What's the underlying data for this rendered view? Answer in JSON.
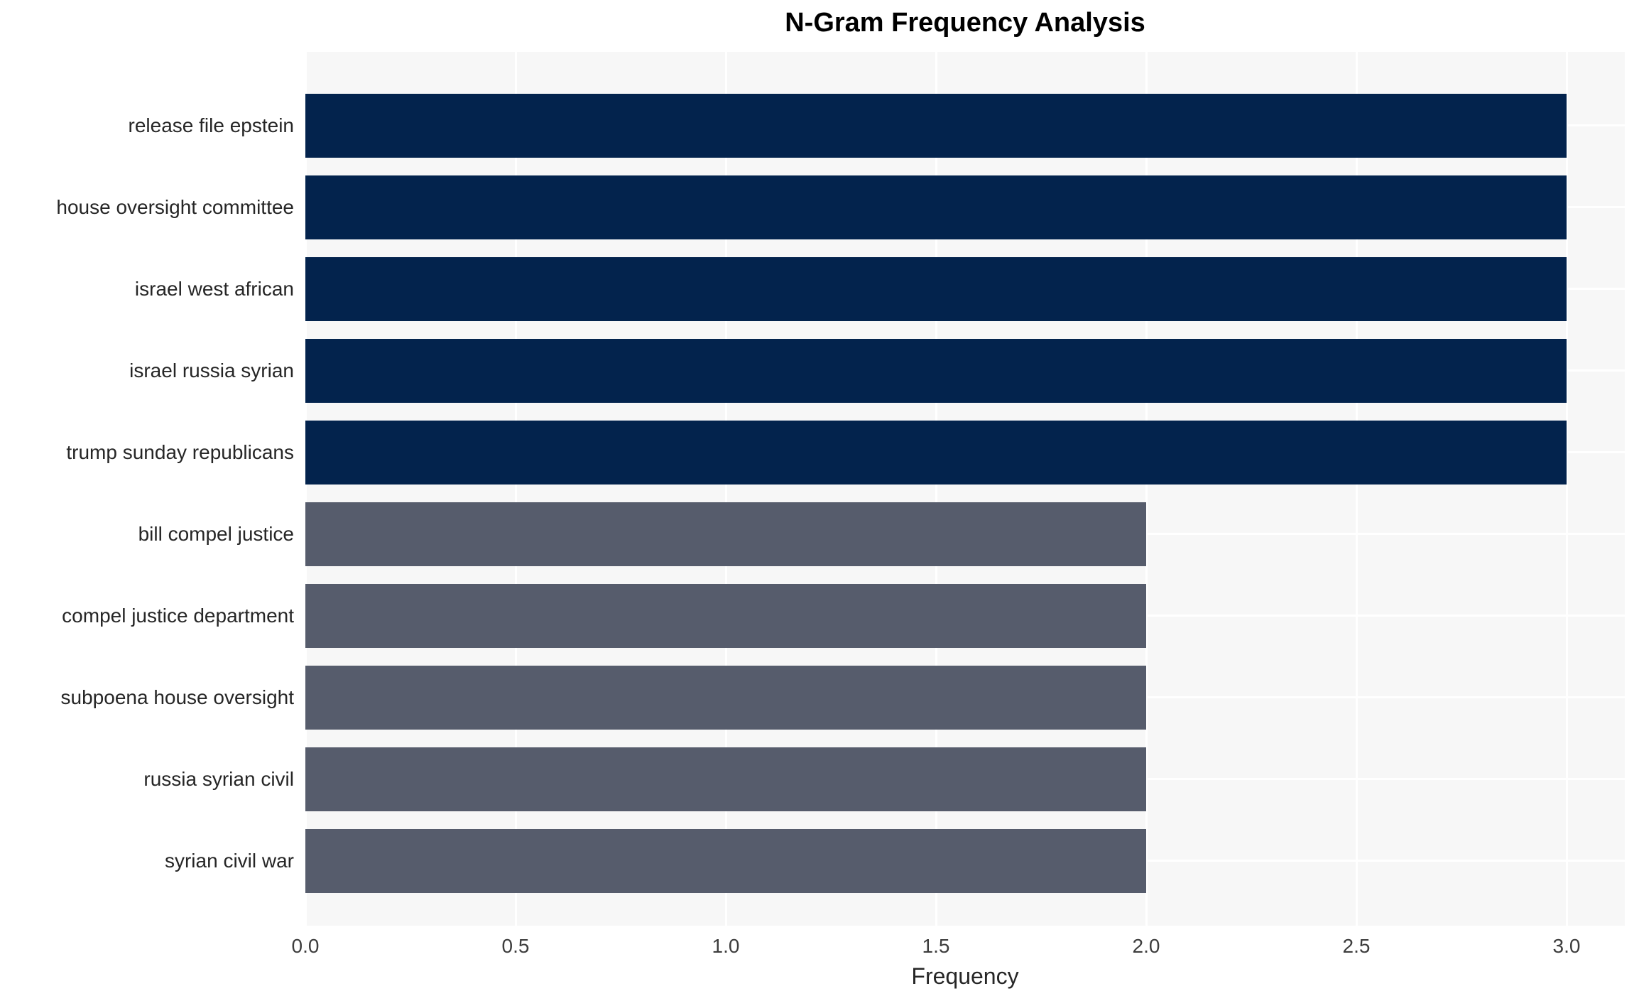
{
  "chart_data": {
    "type": "bar",
    "orientation": "horizontal",
    "title": "N-Gram Frequency Analysis",
    "xlabel": "Frequency",
    "ylabel": "",
    "categories": [
      "release file epstein",
      "house oversight committee",
      "israel west african",
      "israel russia syrian",
      "trump sunday republicans",
      "bill compel justice",
      "compel justice department",
      "subpoena house oversight",
      "russia syrian civil",
      "syrian civil war"
    ],
    "values": [
      3,
      3,
      3,
      3,
      3,
      2,
      2,
      2,
      2,
      2
    ],
    "bar_colors": [
      "#03234d",
      "#03234d",
      "#03234d",
      "#03234d",
      "#03234d",
      "#565c6c",
      "#565c6c",
      "#565c6c",
      "#565c6c",
      "#565c6c"
    ],
    "x_ticks": [
      "0.0",
      "0.5",
      "1.0",
      "1.5",
      "2.0",
      "2.5",
      "3.0"
    ],
    "xlim": [
      0,
      3.14
    ],
    "grid": "on",
    "legend": "none",
    "colors": {
      "high_freq_bar": "#03234d",
      "low_freq_bar": "#565c6c",
      "plot_background": "#f7f7f7",
      "gridline": "#ffffff",
      "title_text": "#000000",
      "label_text": "#262626"
    }
  }
}
